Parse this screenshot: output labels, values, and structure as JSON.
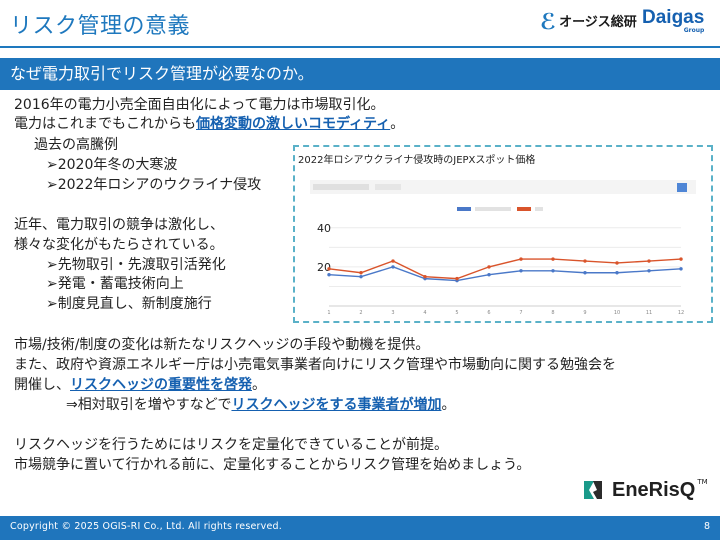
{
  "page": {
    "title": "リスク管理の意義",
    "banner": "なぜ電力取引でリスク管理が必要なのか。",
    "page_number": "8"
  },
  "logos": {
    "ogis_text": "オージス総研",
    "daigas_name": "Daigas",
    "daigas_group": "Group",
    "brand_name": "EneRisQ",
    "brand_tm": "TM"
  },
  "body": {
    "p1_line1": "2016年の電力小売全面自由化によって電力は市場取引化。",
    "p1_line2_pre": "電力はこれまでもこれからも",
    "p1_line2_hl": "価格変動の激しいコモディティ",
    "p1_line2_post": "。",
    "past_label": "過去の高騰例",
    "past_items": [
      "➢2020年冬の大寒波",
      "➢2022年ロシアのウクライナ侵攻"
    ],
    "p2_line1": "近年、電力取引の競争は激化し、",
    "p2_line2": "様々な変化がもたらされている。",
    "p2_items": [
      "➢先物取引・先渡取引活発化",
      "➢発電・蓄電技術向上",
      "➢制度見直し、新制度施行"
    ],
    "p3_line1": "市場/技術/制度の変化は新たなリスクヘッジの手段や動機を提供。",
    "p3_line2": "また、政府や資源エネルギー庁は小売電気事業者向けにリスク管理や市場動向に関する勉強会を",
    "p3_line3_pre": "開催し、",
    "p3_line3_hl": "リスクヘッジの重要性を啓発",
    "p3_line3_post": "。",
    "p3_line4_pre": "⇒相対取引を増やすなどで",
    "p3_line4_hl": "リスクヘッジをする事業者が増加",
    "p3_line4_post": "。",
    "p4_line1": "リスクヘッジを行うためにはリスクを定量化できていることが前提。",
    "p4_line2": "市場競争に置いて行かれる前に、定量化することからリスク管理を始めましょう。"
  },
  "chart_caption": "2022年ロシアウクライナ侵攻時のJEPXスポット価格",
  "chart_data": {
    "type": "line",
    "title": "",
    "xlabel": "",
    "ylabel": "",
    "ylim": [
      0,
      45
    ],
    "y_ticks": [
      "40",
      "20"
    ],
    "x": [
      1,
      2,
      3,
      4,
      5,
      6,
      7,
      8,
      9,
      10,
      11,
      12
    ],
    "series": [
      {
        "name": "",
        "color": "#4a78c8",
        "values": [
          16,
          15,
          20,
          14,
          13,
          16,
          18,
          18,
          17,
          17,
          18,
          19
        ]
      },
      {
        "name": "",
        "color": "#d9542b",
        "values": [
          19,
          17,
          23,
          15,
          14,
          20,
          24,
          24,
          23,
          22,
          23,
          24
        ]
      }
    ]
  },
  "footer": {
    "copyright": "Copyright © 2025 OGIS-RI Co., Ltd.  All rights reserved."
  }
}
